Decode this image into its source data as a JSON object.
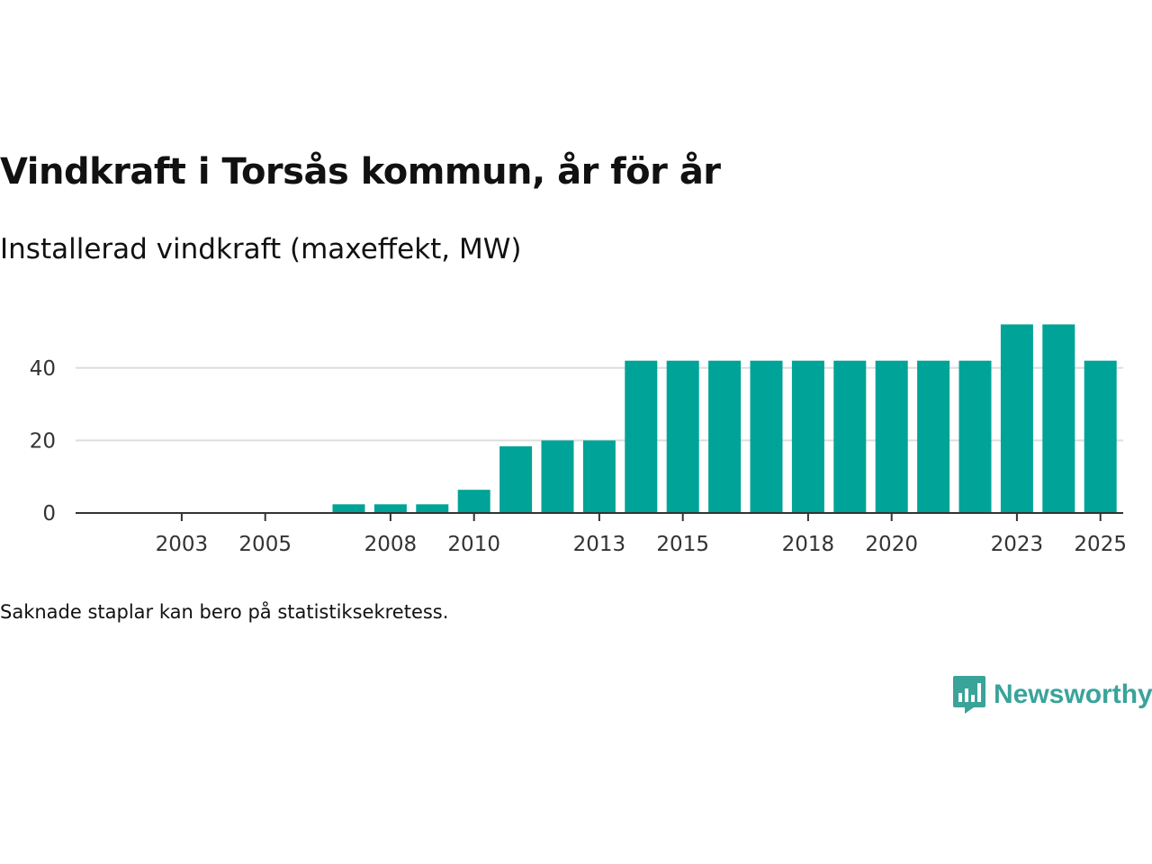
{
  "title": "Vindkraft i Torsås kommun, år för år",
  "subtitle": "Installerad vindkraft (maxeffekt, MW)",
  "footnote": "Saknade staplar kan bero på statistiksekretess.",
  "brand": {
    "name": "Newsworthy",
    "icon": "newsworthy-logo-icon"
  },
  "colors": {
    "bar": "#00a397",
    "grid": "#dddddd",
    "axis": "#333333",
    "brand": "#3aa39a"
  },
  "chart_data": {
    "type": "bar",
    "title": "Vindkraft i Torsås kommun, år för år",
    "ylabel": "Installerad vindkraft (maxeffekt, MW)",
    "xlabel": "",
    "categories": [
      2002,
      2003,
      2004,
      2005,
      2006,
      2007,
      2008,
      2009,
      2010,
      2011,
      2012,
      2013,
      2014,
      2015,
      2016,
      2017,
      2018,
      2019,
      2020,
      2021,
      2022,
      2023,
      2024,
      2025
    ],
    "values": [
      0,
      0,
      0,
      0,
      0,
      2.4,
      2.4,
      2.4,
      6.4,
      18.4,
      20,
      20,
      42,
      42,
      42,
      42,
      42,
      42,
      42,
      42,
      42,
      52,
      52,
      42
    ],
    "ylim": [
      0,
      52
    ],
    "yticks": [
      {
        "value": 0,
        "label": "0"
      },
      {
        "value": 20,
        "label": "20"
      },
      {
        "value": 40,
        "label": "40"
      }
    ],
    "xticks": [
      {
        "value": 2003,
        "label": "2003"
      },
      {
        "value": 2005,
        "label": "2005"
      },
      {
        "value": 2008,
        "label": "2008"
      },
      {
        "value": 2010,
        "label": "2010"
      },
      {
        "value": 2013,
        "label": "2013"
      },
      {
        "value": 2015,
        "label": "2015"
      },
      {
        "value": 2018,
        "label": "2018"
      },
      {
        "value": 2020,
        "label": "2020"
      },
      {
        "value": 2023,
        "label": "2023"
      },
      {
        "value": 2025,
        "label": "2025"
      }
    ],
    "grid": true,
    "legend": "none"
  }
}
